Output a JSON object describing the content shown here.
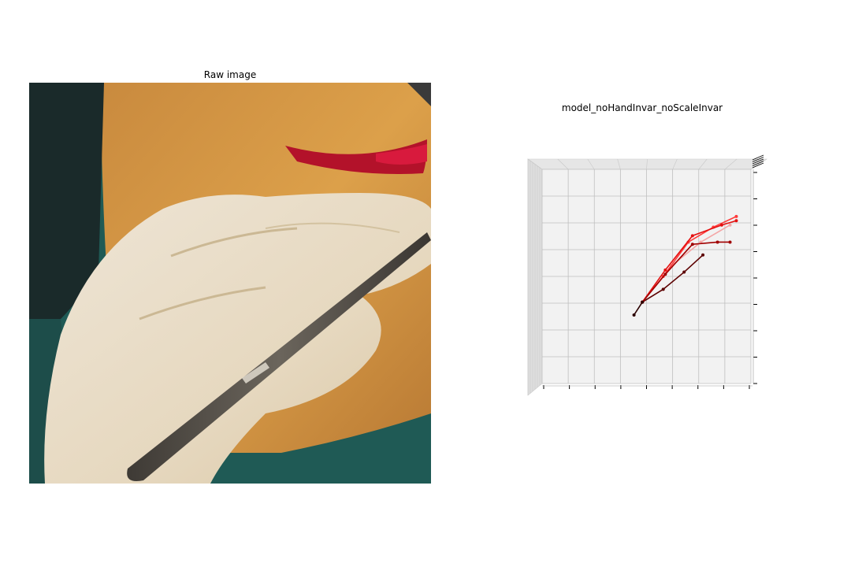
{
  "panels": {
    "raw_title": "Raw image",
    "plot_title": "model_noHandInvar_noScaleInvar"
  },
  "raw_image": {
    "description_icon": "photo-surgical-glove-forceps",
    "colors": {
      "drape": "#1f5a55",
      "skin": "#d8953f",
      "glove": "#e8dcc6",
      "incision": "#c8102e",
      "forceps": "#5a544c"
    }
  },
  "chart_data": {
    "type": "3d-line",
    "grid": true,
    "pane_color": "#f2f2f2",
    "view": "top-down",
    "tick_labels": [],
    "series": [
      {
        "color": "#5c0000",
        "points": [
          [
            0.48,
            0.38
          ],
          [
            0.58,
            0.44
          ],
          [
            0.68,
            0.52
          ],
          [
            0.77,
            0.6
          ]
        ]
      },
      {
        "color": "#f4a6a6",
        "points": [
          [
            0.48,
            0.38
          ],
          [
            0.62,
            0.55
          ],
          [
            0.76,
            0.66
          ],
          [
            0.9,
            0.74
          ]
        ]
      },
      {
        "color": "#ff3b3b",
        "points": [
          [
            0.48,
            0.38
          ],
          [
            0.58,
            0.5
          ],
          [
            0.7,
            0.66
          ],
          [
            0.82,
            0.73
          ],
          [
            0.93,
            0.78
          ]
        ]
      },
      {
        "color": "#e31010",
        "points": [
          [
            0.48,
            0.38
          ],
          [
            0.59,
            0.53
          ],
          [
            0.72,
            0.69
          ],
          [
            0.86,
            0.74
          ],
          [
            0.93,
            0.76
          ]
        ]
      },
      {
        "color": "#a00000",
        "points": [
          [
            0.48,
            0.38
          ],
          [
            0.59,
            0.51
          ],
          [
            0.72,
            0.65
          ],
          [
            0.84,
            0.66
          ],
          [
            0.9,
            0.66
          ]
        ]
      },
      {
        "color": "#2b0000",
        "points": [
          [
            0.44,
            0.32
          ],
          [
            0.48,
            0.38
          ]
        ]
      }
    ]
  }
}
